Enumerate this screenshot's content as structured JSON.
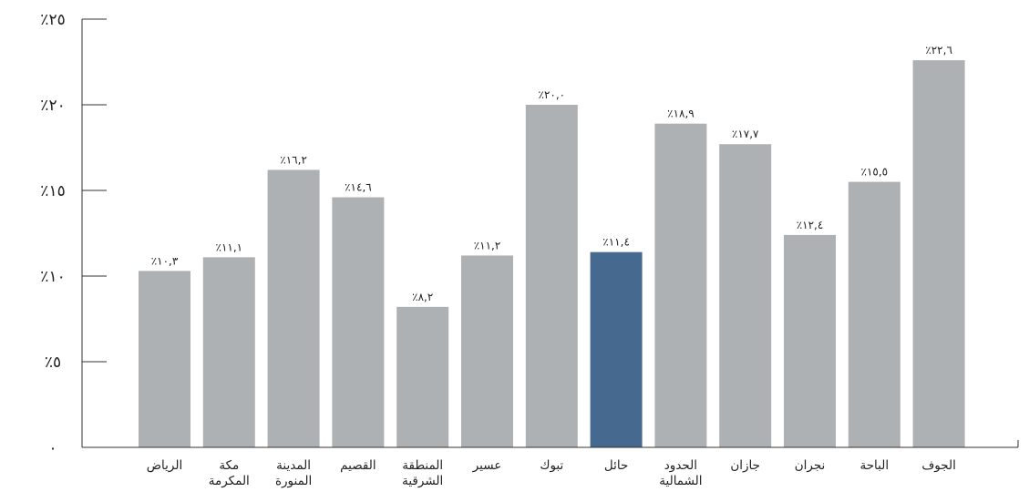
{
  "chart_data": {
    "type": "bar",
    "categories": [
      [
        "الرياض"
      ],
      [
        "مكة",
        "المكرمة"
      ],
      [
        "المدينة",
        "المنورة"
      ],
      [
        "القصيم"
      ],
      [
        "المنطقة",
        "الشرقية"
      ],
      [
        "عسير"
      ],
      [
        "تبوك"
      ],
      [
        "حائل"
      ],
      [
        "الحدود",
        "الشمالية"
      ],
      [
        "جازان"
      ],
      [
        "نجران"
      ],
      [
        "الباحة"
      ],
      [
        "الجوف"
      ]
    ],
    "values": [
      10.3,
      11.1,
      16.2,
      14.6,
      8.2,
      11.2,
      20.0,
      11.4,
      18.9,
      17.7,
      12.4,
      15.5,
      22.6
    ],
    "value_labels": [
      "٪١٠,٣",
      "٪١١,١",
      "٪١٦,٢",
      "٪١٤,٦",
      "٪٨,٢",
      "٪١١,٢",
      "٪٢٠,٠",
      "٪١١,٤",
      "٪١٨,٩",
      "٪١٧,٧",
      "٪١٢,٤",
      "٪١٥,٥",
      "٪٢٢,٦"
    ],
    "highlight_index": 7,
    "ylim": [
      0,
      25
    ],
    "y_ticks": [
      0,
      5,
      10,
      15,
      20,
      25
    ],
    "y_tick_labels": [
      "٠",
      "٪٥",
      "٪١٠",
      "٪١٥",
      "٪٢٠",
      "٪٢٥"
    ],
    "grid": false,
    "legend": "none",
    "colors": {
      "bar": "#aeb1b4",
      "highlight": "#466a8f",
      "axis": "#333333",
      "text": "#222222"
    },
    "title": "",
    "xlabel": "",
    "ylabel": ""
  }
}
